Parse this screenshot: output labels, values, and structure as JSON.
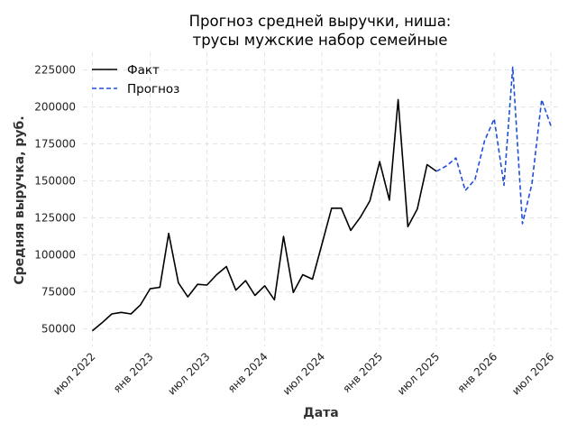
{
  "chart_data": {
    "type": "line",
    "title": [
      "Прогноз средней выручки, ниша:",
      "трусы мужские набор семейные"
    ],
    "xlabel": "Дата",
    "ylabel": "Средняя выручка, руб.",
    "x_range": [
      "2022-06-01",
      "2026-08-01"
    ],
    "ylim": [
      38000,
      237000
    ],
    "y_ticks": [
      50000,
      75000,
      100000,
      125000,
      150000,
      175000,
      200000,
      225000
    ],
    "x_ticks": [
      {
        "date": "2022-07-01",
        "label": "июл 2022"
      },
      {
        "date": "2023-01-01",
        "label": "янв 2023"
      },
      {
        "date": "2023-07-01",
        "label": "июл 2023"
      },
      {
        "date": "2024-01-01",
        "label": "янв 2024"
      },
      {
        "date": "2024-07-01",
        "label": "июл 2024"
      },
      {
        "date": "2025-01-01",
        "label": "янв 2025"
      },
      {
        "date": "2025-07-01",
        "label": "июл 2025"
      },
      {
        "date": "2026-01-01",
        "label": "янв 2026"
      },
      {
        "date": "2026-07-01",
        "label": "июл 2026"
      }
    ],
    "grid": true,
    "legend_position": "top-left",
    "series": [
      {
        "name": "Факт",
        "color": "#000000",
        "style": "solid",
        "points": [
          {
            "x": "2022-07-01",
            "y": 48500
          },
          {
            "x": "2022-08-01",
            "y": 54000
          },
          {
            "x": "2022-09-01",
            "y": 60000
          },
          {
            "x": "2022-10-01",
            "y": 61000
          },
          {
            "x": "2022-11-01",
            "y": 60000
          },
          {
            "x": "2022-12-01",
            "y": 66000
          },
          {
            "x": "2023-01-01",
            "y": 77000
          },
          {
            "x": "2023-02-01",
            "y": 78000
          },
          {
            "x": "2023-03-01",
            "y": 114500
          },
          {
            "x": "2023-04-01",
            "y": 81000
          },
          {
            "x": "2023-05-01",
            "y": 71500
          },
          {
            "x": "2023-06-01",
            "y": 80000
          },
          {
            "x": "2023-07-01",
            "y": 79500
          },
          {
            "x": "2023-08-01",
            "y": 86500
          },
          {
            "x": "2023-09-01",
            "y": 92000
          },
          {
            "x": "2023-10-01",
            "y": 76000
          },
          {
            "x": "2023-11-01",
            "y": 82500
          },
          {
            "x": "2023-12-01",
            "y": 72500
          },
          {
            "x": "2024-01-01",
            "y": 79000
          },
          {
            "x": "2024-02-01",
            "y": 69500
          },
          {
            "x": "2024-03-01",
            "y": 112500
          },
          {
            "x": "2024-04-01",
            "y": 74500
          },
          {
            "x": "2024-05-01",
            "y": 86500
          },
          {
            "x": "2024-06-01",
            "y": 83500
          },
          {
            "x": "2024-07-01",
            "y": 107000
          },
          {
            "x": "2024-08-01",
            "y": 131500
          },
          {
            "x": "2024-09-01",
            "y": 131500
          },
          {
            "x": "2024-10-01",
            "y": 116500
          },
          {
            "x": "2024-11-01",
            "y": 125500
          },
          {
            "x": "2024-12-01",
            "y": 136500
          },
          {
            "x": "2025-01-01",
            "y": 163000
          },
          {
            "x": "2025-02-01",
            "y": 137000
          },
          {
            "x": "2025-03-01",
            "y": 205000
          },
          {
            "x": "2025-04-01",
            "y": 119000
          },
          {
            "x": "2025-05-01",
            "y": 131000
          },
          {
            "x": "2025-06-01",
            "y": 161000
          },
          {
            "x": "2025-07-01",
            "y": 156500
          }
        ]
      },
      {
        "name": "Прогноз",
        "color": "#1f4fd6",
        "style": "dashed",
        "points": [
          {
            "x": "2025-07-01",
            "y": 156500
          },
          {
            "x": "2025-08-01",
            "y": 160000
          },
          {
            "x": "2025-09-01",
            "y": 165500
          },
          {
            "x": "2025-10-01",
            "y": 143500
          },
          {
            "x": "2025-11-01",
            "y": 151000
          },
          {
            "x": "2025-12-01",
            "y": 177000
          },
          {
            "x": "2026-01-01",
            "y": 192000
          },
          {
            "x": "2026-02-01",
            "y": 147000
          },
          {
            "x": "2026-03-01",
            "y": 227000
          },
          {
            "x": "2026-04-01",
            "y": 121000
          },
          {
            "x": "2026-05-01",
            "y": 148000
          },
          {
            "x": "2026-06-01",
            "y": 205000
          },
          {
            "x": "2026-07-01",
            "y": 187000
          }
        ]
      }
    ]
  }
}
